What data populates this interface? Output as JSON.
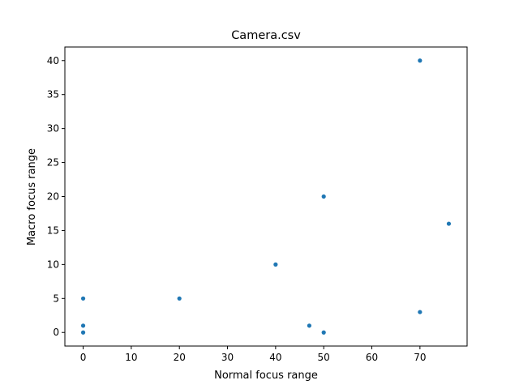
{
  "chart_data": {
    "type": "scatter",
    "title": "Camera.csv",
    "xlabel": "Normal focus range",
    "ylabel": "Macro focus range",
    "xlim": [
      -3.8,
      79.8
    ],
    "ylim": [
      -2.0,
      42.0
    ],
    "xticks": [
      0,
      10,
      20,
      30,
      40,
      50,
      60,
      70
    ],
    "yticks": [
      0,
      5,
      10,
      15,
      20,
      25,
      30,
      35,
      40
    ],
    "grid": false,
    "color": "#1f77b4",
    "points": [
      {
        "x": 70,
        "y": 40
      },
      {
        "x": 50,
        "y": 20
      },
      {
        "x": 76,
        "y": 16
      },
      {
        "x": 40,
        "y": 10
      },
      {
        "x": 0,
        "y": 5
      },
      {
        "x": 20,
        "y": 5
      },
      {
        "x": 70,
        "y": 3
      },
      {
        "x": 0,
        "y": 1
      },
      {
        "x": 47,
        "y": 1
      },
      {
        "x": 0,
        "y": 0
      },
      {
        "x": 50,
        "y": 0
      }
    ]
  }
}
